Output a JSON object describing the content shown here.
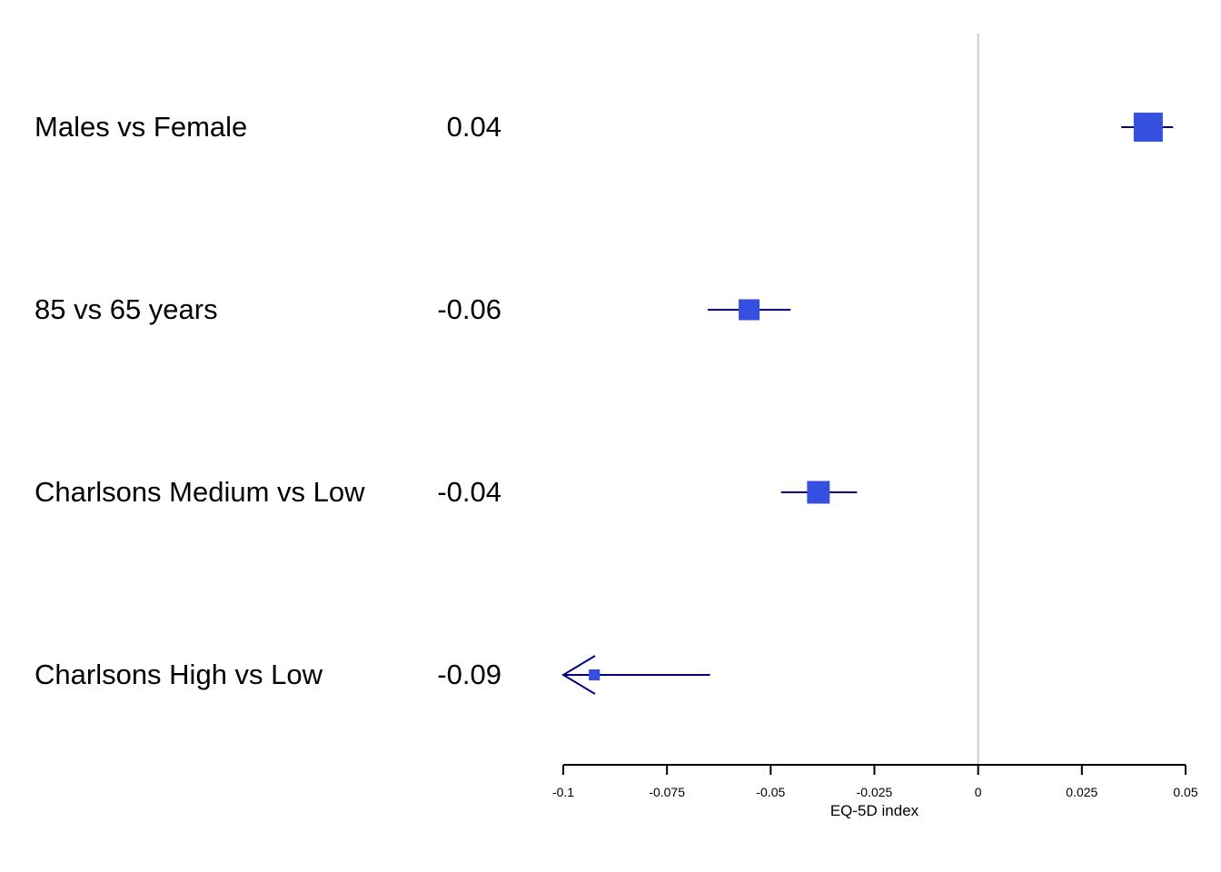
{
  "chart_data": {
    "type": "forest",
    "xlabel": "EQ-5D index",
    "xlim": [
      -0.1,
      0.05
    ],
    "xticks": [
      -0.1,
      -0.075,
      -0.05,
      -0.025,
      0,
      0.025,
      0.05
    ],
    "xtick_labels": [
      "-0.1",
      "-0.075",
      "-0.05",
      "-0.025",
      "0",
      "0.025",
      "0.05"
    ],
    "reference_line": 0,
    "colors": {
      "box": "#3550e0",
      "ci": "#000080",
      "reference": "#cccccc",
      "axis": "#000000"
    },
    "rows": [
      {
        "label": "Males vs Female",
        "value_text": "0.04",
        "estimate": 0.041,
        "lower": 0.0345,
        "upper": 0.047,
        "weight": 1.0,
        "clipped_low": false
      },
      {
        "label": "85 vs 65 years",
        "value_text": "-0.06",
        "estimate": -0.0552,
        "lower": -0.0652,
        "upper": -0.0452,
        "weight": 0.72,
        "clipped_low": false
      },
      {
        "label": "Charlsons Medium vs Low",
        "value_text": "-0.04",
        "estimate": -0.0385,
        "lower": -0.0475,
        "upper": -0.0292,
        "weight": 0.78,
        "clipped_low": false
      },
      {
        "label": "Charlsons High vs Low",
        "value_text": "-0.09",
        "estimate": -0.0925,
        "lower": -0.1,
        "upper": -0.0646,
        "weight": 0.38,
        "clipped_low": true
      }
    ]
  }
}
